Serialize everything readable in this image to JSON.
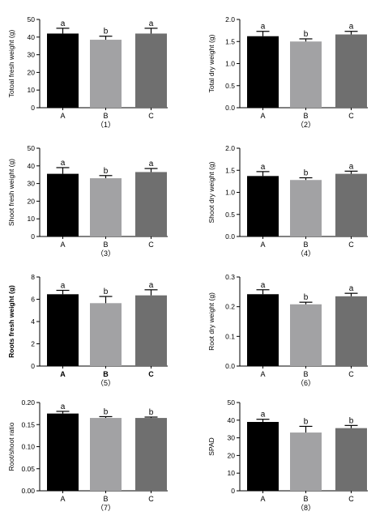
{
  "colors": {
    "A": "#000000",
    "B": "#a2a2a4",
    "C": "#6f6f6f",
    "axis": "#000000"
  },
  "chart_data": [
    {
      "type": "bar",
      "panel_label": "（1）",
      "ylabel": "Totoal fresh weight (g)",
      "categories": [
        "A",
        "B",
        "C"
      ],
      "values": [
        42,
        38.5,
        42
      ],
      "errors": [
        3,
        2,
        3
      ],
      "letters": [
        "a",
        "b",
        "a"
      ],
      "ylim": [
        0,
        50
      ],
      "ticks": [
        0,
        10,
        20,
        30,
        40,
        50
      ],
      "tick_labels": [
        "0",
        "10",
        "20",
        "30",
        "40",
        "50"
      ]
    },
    {
      "type": "bar",
      "panel_label": "（2）",
      "ylabel": "Total dry weight (g)",
      "categories": [
        "A",
        "B",
        "C"
      ],
      "values": [
        1.62,
        1.5,
        1.66
      ],
      "errors": [
        0.11,
        0.06,
        0.07
      ],
      "letters": [
        "a",
        "b",
        "a"
      ],
      "ylim": [
        0,
        2.0
      ],
      "ticks": [
        0,
        0.5,
        1.0,
        1.5,
        2.0
      ],
      "tick_labels": [
        "0.0",
        "0.5",
        "1.0",
        "1.5",
        "2.0"
      ]
    },
    {
      "type": "bar",
      "panel_label": "（3）",
      "ylabel": "Shoot fresh weight (g)",
      "categories": [
        "A",
        "B",
        "C"
      ],
      "values": [
        35.5,
        33,
        36.5
      ],
      "errors": [
        3.5,
        1.5,
        2
      ],
      "letters": [
        "a",
        "b",
        "a"
      ],
      "ylim": [
        0,
        50
      ],
      "ticks": [
        0,
        10,
        20,
        30,
        40,
        50
      ],
      "tick_labels": [
        "0",
        "10",
        "20",
        "30",
        "40",
        "50"
      ]
    },
    {
      "type": "bar",
      "panel_label": "（4）",
      "ylabel": "Shoot dry weight (g)",
      "categories": [
        "A",
        "B",
        "C"
      ],
      "values": [
        1.37,
        1.28,
        1.42
      ],
      "errors": [
        0.1,
        0.05,
        0.06
      ],
      "letters": [
        "a",
        "b",
        "a"
      ],
      "ylim": [
        0,
        2.0
      ],
      "ticks": [
        0,
        0.5,
        1.0,
        1.5,
        2.0
      ],
      "tick_labels": [
        "0.0",
        "0.5",
        "1.0",
        "1.5",
        "2.0"
      ]
    },
    {
      "type": "bar",
      "panel_label": "（5）",
      "ylabel": "Roots fresh weight (g)",
      "bold": true,
      "categories": [
        "A",
        "B",
        "C"
      ],
      "values": [
        6.45,
        5.65,
        6.35
      ],
      "errors": [
        0.35,
        0.6,
        0.5
      ],
      "letters": [
        "a",
        "b",
        "a"
      ],
      "ylim": [
        0,
        8
      ],
      "ticks": [
        0,
        2,
        4,
        6,
        8
      ],
      "tick_labels": [
        "0",
        "2",
        "4",
        "6",
        "8"
      ]
    },
    {
      "type": "bar",
      "panel_label": "（6）",
      "ylabel": "Root dry weight (g)",
      "categories": [
        "A",
        "B",
        "C"
      ],
      "values": [
        0.242,
        0.208,
        0.235
      ],
      "errors": [
        0.015,
        0.007,
        0.01
      ],
      "letters": [
        "a",
        "b",
        "a"
      ],
      "ylim": [
        0,
        0.3
      ],
      "ticks": [
        0,
        0.1,
        0.2,
        0.3
      ],
      "tick_labels": [
        "0.0",
        "0.1",
        "0.2",
        "0.3"
      ]
    },
    {
      "type": "bar",
      "panel_label": "（7）",
      "ylabel": "Root/shoot ratio",
      "categories": [
        "A",
        "B",
        "C"
      ],
      "values": [
        0.175,
        0.165,
        0.165
      ],
      "errors": [
        0.005,
        0.003,
        0.002
      ],
      "letters": [
        "a",
        "b",
        "b"
      ],
      "ylim": [
        0,
        0.2
      ],
      "ticks": [
        0,
        0.05,
        0.1,
        0.15,
        0.2
      ],
      "tick_labels": [
        "0.00",
        "0.05",
        "0.10",
        "0.15",
        "0.20"
      ]
    },
    {
      "type": "bar",
      "panel_label": "（8）",
      "ylabel": "SPAD",
      "categories": [
        "A",
        "B",
        "C"
      ],
      "values": [
        39,
        33,
        35.5
      ],
      "errors": [
        1.5,
        3.5,
        1.5
      ],
      "letters": [
        "a",
        "b",
        "b"
      ],
      "ylim": [
        0,
        50
      ],
      "ticks": [
        0,
        10,
        20,
        30,
        40,
        50
      ],
      "tick_labels": [
        "0",
        "10",
        "20",
        "30",
        "40",
        "50"
      ]
    }
  ]
}
